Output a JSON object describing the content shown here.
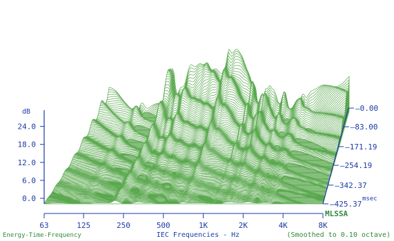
{
  "chart_data": {
    "type": "waterfall",
    "title": "Energy-Time-Frequency",
    "xlabel": "IEC Frequencies - Hz",
    "note": "(Smoothed to 0.10 octave)",
    "brand": "MLSSA",
    "x_ticks": [
      "63",
      "125",
      "250",
      "500",
      "1K",
      "2K",
      "4K",
      "8K"
    ],
    "x_range_hz": [
      63,
      8000
    ],
    "x_scale": "log",
    "db_unit": "dB",
    "db_ticks": [
      "24.0",
      "18.0",
      "12.0",
      "6.0",
      "0.0"
    ],
    "db_range": [
      -6,
      27
    ],
    "time_ticks": [
      "0.00",
      "83.00",
      "171.19",
      "254.19",
      "342.37",
      "425.37"
    ],
    "time_unit": "msec",
    "time_range_msec": [
      0,
      425.37
    ],
    "grid": false,
    "colors": {
      "trace": "#5aa84e",
      "axis": "#1c3aa8",
      "footer": "#2f8a3a",
      "background": "#ffffff"
    }
  }
}
